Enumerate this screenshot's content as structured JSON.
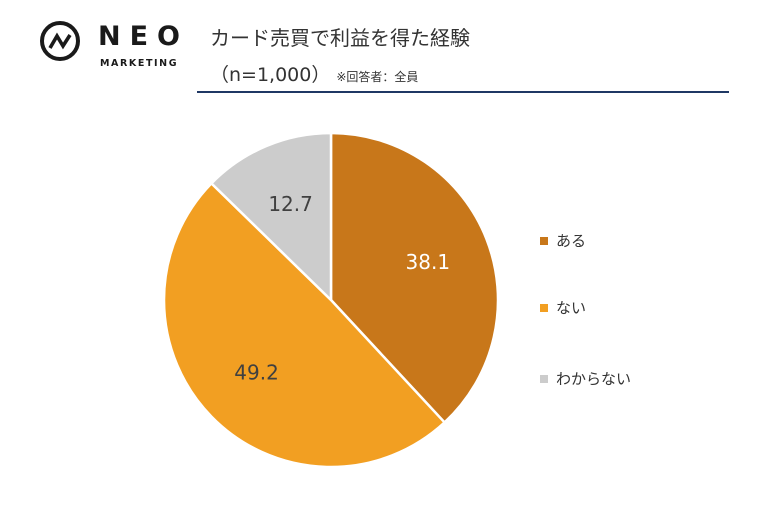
{
  "logo": {
    "word": "NEO",
    "sub": "MARKETING"
  },
  "header": {
    "title": "カード売買で利益を得た経験",
    "subtitle": "（n=1,000）",
    "note": "※回答者：全員"
  },
  "colors": {
    "rule": "#1f3864",
    "text": "#333333"
  },
  "chart_data": {
    "type": "pie",
    "title": "カード売買で利益を得た経験",
    "start_angle_deg": 0,
    "direction": "clockwise",
    "slices": [
      {
        "label": "ある",
        "value": 38.1,
        "display": "38.1",
        "color": "#c8771a",
        "label_color": "#ffffff"
      },
      {
        "label": "ない",
        "value": 49.2,
        "display": "49.2",
        "color": "#f29f22",
        "label_color": "#404040"
      },
      {
        "label": "わからない",
        "value": 12.7,
        "display": "12.7",
        "color": "#cccccc",
        "label_color": "#404040"
      }
    ],
    "legend_position": "right"
  }
}
